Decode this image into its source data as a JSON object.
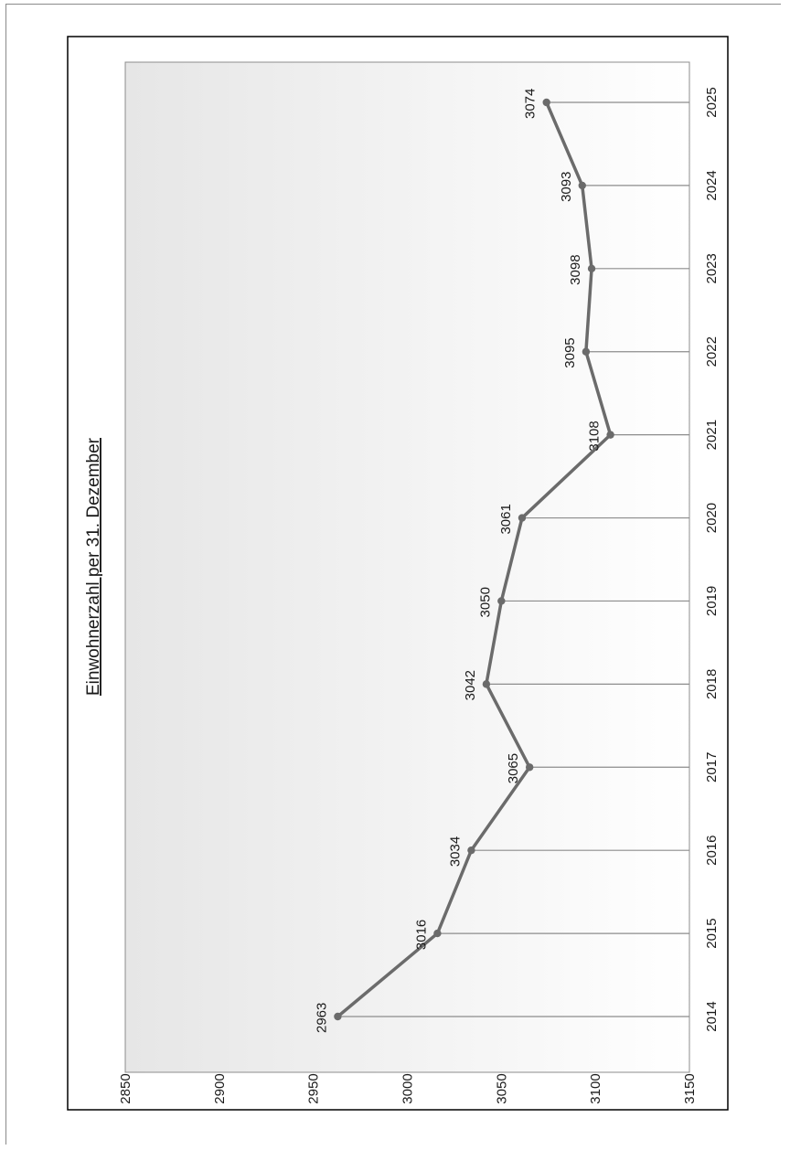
{
  "chart_data": {
    "type": "line",
    "title": "Einwohnerzahl  per 31. Dezember",
    "orientation": "rotated-90-ccw",
    "x": [
      2014,
      2015,
      2016,
      2017,
      2018,
      2019,
      2020,
      2021,
      2022,
      2023,
      2024,
      2025
    ],
    "series": [
      {
        "values": [
          2963,
          3016,
          3034,
          3065,
          3042,
          3050,
          3061,
          3108,
          3095,
          3098,
          3093,
          3074
        ],
        "color": "#6b6b6b"
      }
    ],
    "data_labels": [
      "2963",
      "3016",
      "3034",
      "3065",
      "3042",
      "3050",
      "3061",
      "3108",
      "3095",
      "3098",
      "3093",
      "3074"
    ],
    "ylim": [
      2850,
      3150
    ],
    "y_ticks": [
      2850,
      2900,
      2950,
      3000,
      3050,
      3100,
      3150
    ],
    "x_tick_labels": [
      "2014",
      "2015",
      "2016",
      "2017",
      "2018",
      "2019",
      "2020",
      "2021",
      "2022",
      "2023",
      "2024",
      "2025"
    ],
    "y_tick_labels": [
      "2850",
      "2900",
      "2950",
      "3000",
      "3050",
      "3100",
      "3150"
    ],
    "grid": "vertical drop lines at each year",
    "legend": "none",
    "colors": {
      "line": "#6b6b6b",
      "marker": "#6b6b6b",
      "drop_line": "#8c8c8c",
      "plot_bg_start": "#e6e6e6",
      "plot_bg_end": "#ffffff",
      "frame": "#000000"
    }
  }
}
